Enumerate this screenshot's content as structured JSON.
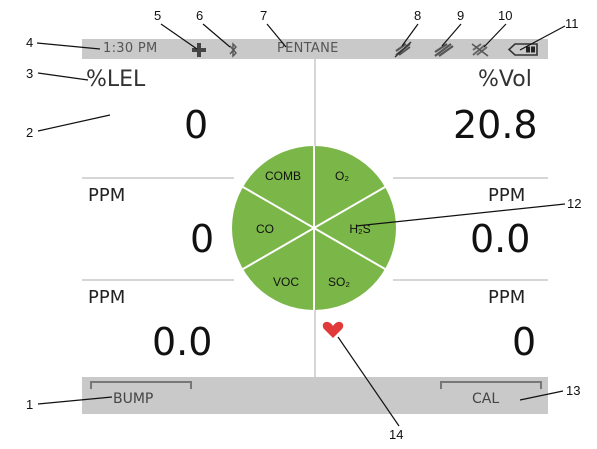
{
  "status_bar": {
    "time": "1:30 PM",
    "gas_type": "PENTANE"
  },
  "display": {
    "top_left_unit": "%LEL",
    "top_right_unit": "%Vol",
    "top_left_value": "0",
    "top_right_value": "20.8",
    "mid_left_unit": "PPM",
    "mid_right_unit": "PPM",
    "mid_left_value": "0",
    "mid_right_value": "0.0",
    "bottom_left_unit": "PPM",
    "bottom_right_unit": "PPM",
    "bottom_left_value": "0.0",
    "bottom_right_value": "0"
  },
  "gas_wheel": {
    "color": "#7ab648",
    "sectors": [
      "COMB",
      "O₂",
      "H₂S",
      "SO₂",
      "VOC",
      "CO"
    ]
  },
  "softkeys": {
    "left": "BUMP",
    "right": "CAL"
  },
  "callouts": [
    "1",
    "2",
    "3",
    "4",
    "5",
    "6",
    "7",
    "8",
    "9",
    "10",
    "11",
    "12",
    "13",
    "14"
  ],
  "colors": {
    "bar_gray": "#c9c9c9",
    "heart": "#e03a3a",
    "wheel_green": "#7ab648"
  }
}
